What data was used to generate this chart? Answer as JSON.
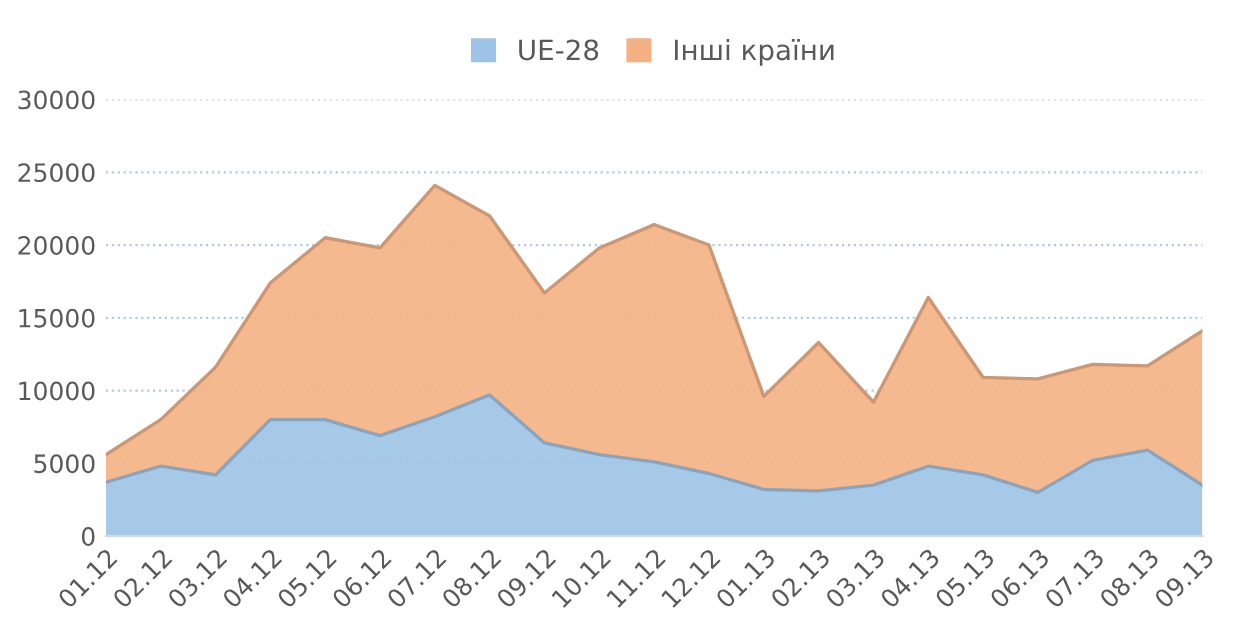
{
  "chart_data": {
    "type": "area",
    "stacked": true,
    "categories": [
      "01.12",
      "02.12",
      "03.12",
      "04.12",
      "05.12",
      "06.12",
      "07.12",
      "08.12",
      "09.12",
      "10.12",
      "11.12",
      "12.12",
      "01.13",
      "02.13",
      "03.13",
      "04.13",
      "05.13",
      "06.13",
      "07.13",
      "08.13",
      "09.13"
    ],
    "series": [
      {
        "name": "UE-28",
        "color": "#9dc3e6",
        "values": [
          3700,
          4800,
          4200,
          8000,
          8000,
          6900,
          8200,
          9700,
          6400,
          5600,
          5100,
          4300,
          3200,
          3100,
          3500,
          4800,
          4200,
          3000,
          5200,
          5900,
          3500
        ]
      },
      {
        "name": "Інші країни",
        "color": "#f4b183",
        "values": [
          1900,
          3200,
          7400,
          9400,
          12500,
          12900,
          15900,
          12300,
          10300,
          14200,
          16300,
          15700,
          6400,
          10200,
          5700,
          11600,
          6700,
          7800,
          6600,
          5800,
          10600
        ]
      }
    ],
    "ylim": [
      0,
      30000
    ],
    "yticks": [
      0,
      5000,
      10000,
      15000,
      20000,
      25000,
      30000
    ],
    "grid": "y",
    "legend": "top"
  }
}
